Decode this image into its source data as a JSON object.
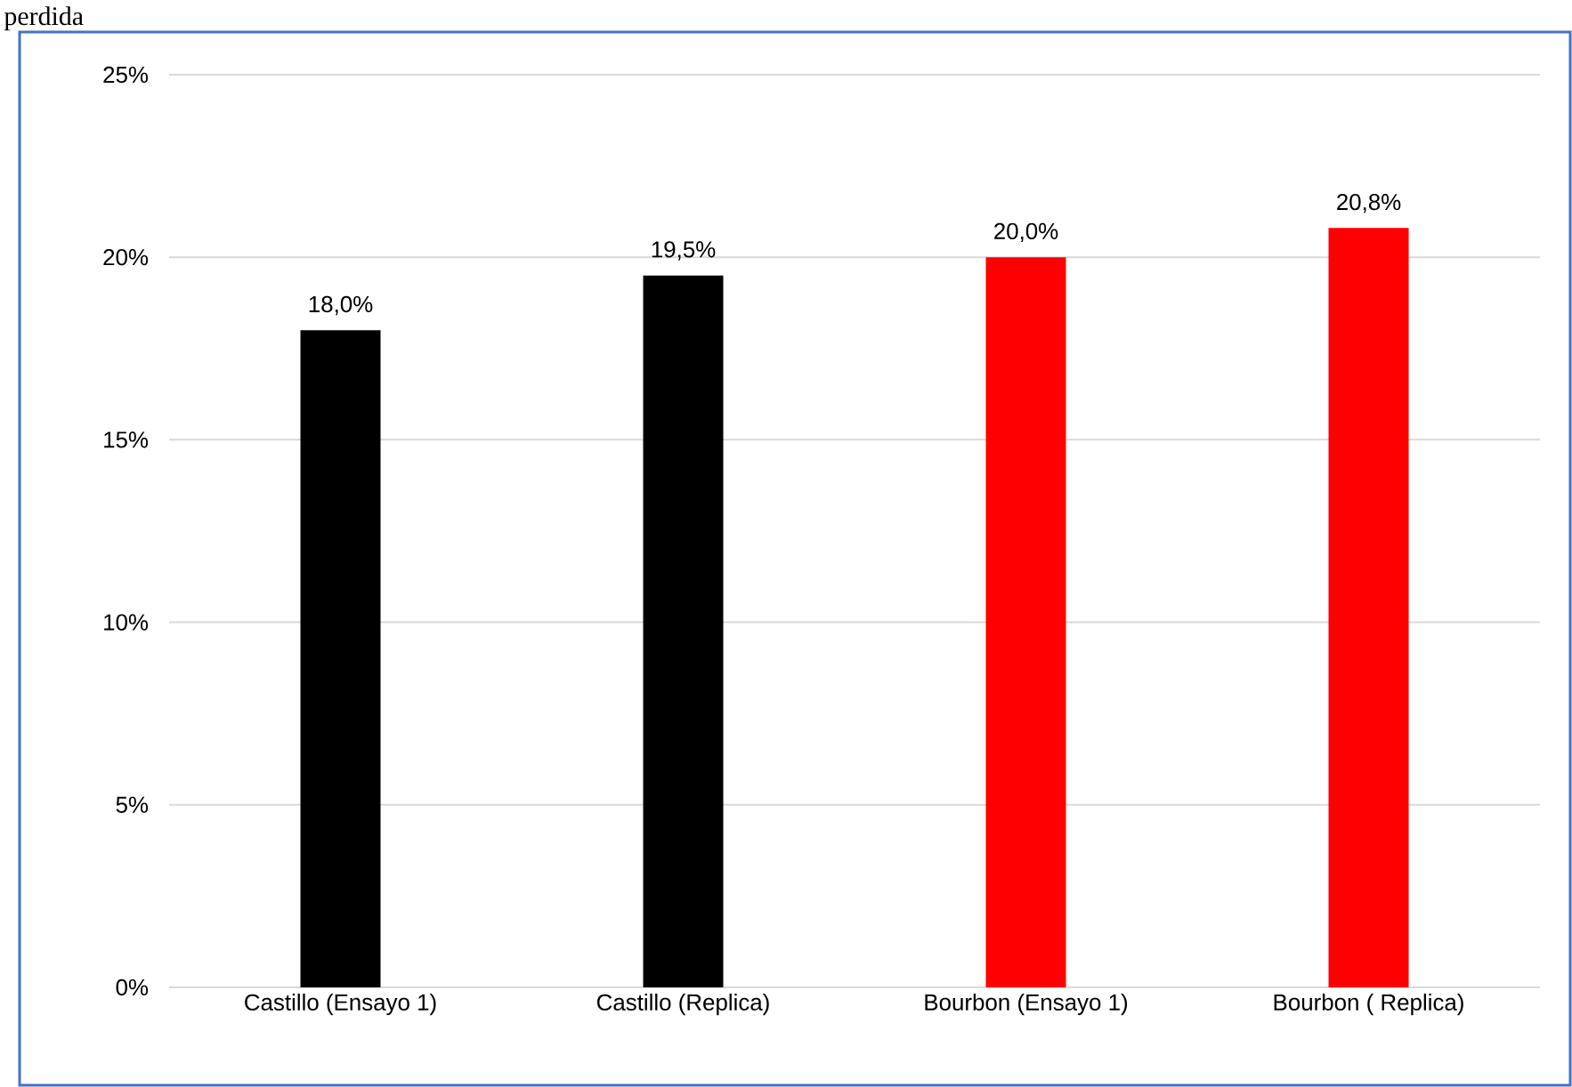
{
  "chart_data": {
    "type": "bar",
    "title": "perdida",
    "categories": [
      "Castillo (Ensayo 1)",
      "Castillo (Replica)",
      "Bourbon (Ensayo 1)",
      "Bourbon ( Replica)"
    ],
    "values": [
      18.0,
      19.5,
      20.0,
      20.8
    ],
    "colors": [
      "#000000",
      "#000000",
      "#ff0000",
      "#ff0000"
    ],
    "value_labels": [
      "18,0%",
      "19,5%",
      "20,0%",
      "20,8%"
    ],
    "ylim": [
      0,
      25
    ],
    "yticks": [
      {
        "value": 0,
        "label": "0%"
      },
      {
        "value": 5,
        "label": "5%"
      },
      {
        "value": 10,
        "label": "10%"
      },
      {
        "value": 15,
        "label": "15%"
      },
      {
        "value": 20,
        "label": "20%"
      },
      {
        "value": 25,
        "label": "25%"
      }
    ],
    "grid": "y"
  }
}
